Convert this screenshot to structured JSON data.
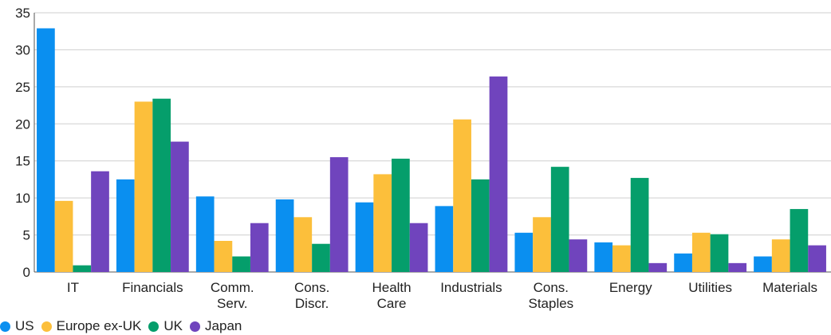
{
  "chart_data": {
    "type": "bar",
    "categories": [
      [
        "IT"
      ],
      [
        "Financials"
      ],
      [
        "Comm.",
        "Serv."
      ],
      [
        "Cons.",
        "Discr."
      ],
      [
        "Health",
        "Care"
      ],
      [
        "Industrials"
      ],
      [
        "Cons.",
        "Staples"
      ],
      [
        "Energy"
      ],
      [
        "Utilities"
      ],
      [
        "Materials"
      ]
    ],
    "series": [
      {
        "name": "US",
        "color": "#0a8ff0",
        "values": [
          32.9,
          12.5,
          10.2,
          9.8,
          9.4,
          8.9,
          5.3,
          4.0,
          2.5,
          2.1
        ]
      },
      {
        "name": "Europe ex-UK",
        "color": "#fcbf3b",
        "values": [
          9.6,
          23.0,
          4.2,
          7.4,
          13.2,
          20.6,
          7.4,
          3.6,
          5.3,
          4.4
        ]
      },
      {
        "name": "UK",
        "color": "#059e6b",
        "values": [
          0.9,
          23.4,
          2.1,
          3.8,
          15.3,
          12.5,
          14.2,
          12.7,
          5.1,
          8.5
        ]
      },
      {
        "name": "Japan",
        "color": "#7044bd",
        "values": [
          13.6,
          17.6,
          6.6,
          15.5,
          6.6,
          26.4,
          4.4,
          1.2,
          1.2,
          3.6
        ]
      }
    ],
    "yticks": [
      "0",
      "5",
      "10",
      "15",
      "20",
      "25",
      "30",
      "35"
    ],
    "ylim": [
      0,
      35
    ],
    "grid": true,
    "legend_position": "bottom-left"
  }
}
